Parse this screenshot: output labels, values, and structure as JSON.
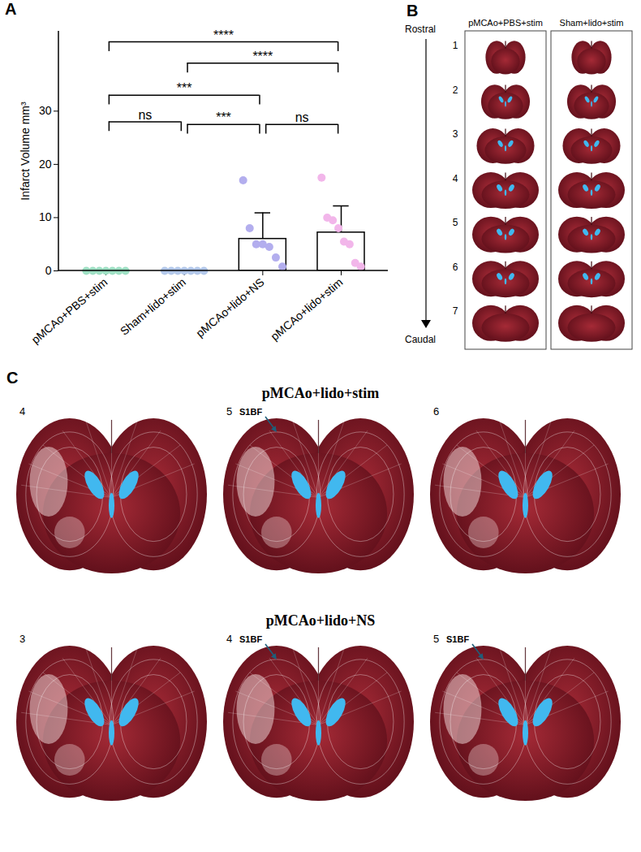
{
  "chart_data": {
    "type": "bar",
    "panel_label": "A",
    "y_label": "Infarct Volume mm³",
    "categories": [
      "pMCAo+PBS+stim",
      "Sham+lido+stim",
      "pMCAo+lido+NS",
      "pMCAo+lido+stim"
    ],
    "values": [
      0,
      0,
      6.0,
      7.2
    ],
    "errors": [
      0,
      0,
      4.9,
      5.0
    ],
    "points": [
      [
        0,
        0,
        0,
        0,
        0,
        0,
        0
      ],
      [
        0,
        0,
        0,
        0,
        0,
        0,
        0
      ],
      [
        17,
        8,
        5,
        5,
        4.5,
        2.5,
        0.8
      ],
      [
        17.5,
        10,
        9.5,
        8,
        5.5,
        5,
        1.5,
        0.8
      ]
    ],
    "colors": [
      "#9fe0c4",
      "#b3c8ea",
      "#b3aeee",
      "#f2b6ea"
    ],
    "ylim": [
      0,
      45
    ],
    "yticks": [
      0,
      10,
      20,
      30
    ],
    "grid": false,
    "comparisons": [
      {
        "from": "pMCAo+PBS+stim",
        "to": "pMCAo+lido+stim",
        "label": "****",
        "y": 43
      },
      {
        "from": "Sham+lido+stim",
        "to": "pMCAo+lido+stim",
        "label": "****",
        "y": 39
      },
      {
        "from": "pMCAo+PBS+stim",
        "to": "pMCAo+lido+NS",
        "label": "***",
        "y": 33
      },
      {
        "from": "pMCAo+PBS+stim",
        "to": "Sham+lido+stim",
        "label": "ns",
        "y": 28
      },
      {
        "from": "Sham+lido+stim",
        "to": "pMCAo+lido+NS",
        "label": "***",
        "y": 27.5
      },
      {
        "from": "pMCAo+lido+NS",
        "to": "pMCAo+lido+stim",
        "label": "ns",
        "y": 27.5
      }
    ]
  },
  "panels": {
    "B": {
      "label": "B",
      "axis_top": "Rostral",
      "axis_bottom": "Caudal",
      "columns": [
        "pMCAo+PBS+stim",
        "Sham+lido+stim"
      ],
      "slices": [
        "1",
        "2",
        "3",
        "4",
        "5",
        "6",
        "7"
      ]
    },
    "C": {
      "label": "C",
      "groups": [
        {
          "title": "pMCAo+lido+stim",
          "slices": [
            "4",
            "5",
            "6"
          ],
          "annotations": [
            {
              "slice": "5",
              "text": "S1BF"
            }
          ]
        },
        {
          "title": "pMCAo+lido+NS",
          "slices": [
            "3",
            "4",
            "5"
          ],
          "annotations": [
            {
              "slice": "4",
              "text": "S1BF"
            },
            {
              "slice": "5",
              "text": "S1BF"
            }
          ]
        }
      ]
    }
  }
}
